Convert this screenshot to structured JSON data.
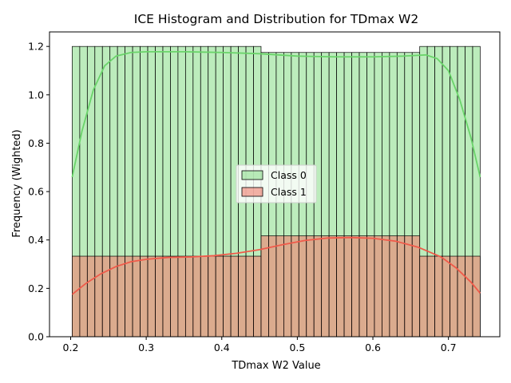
{
  "chart_data": {
    "type": "histogram",
    "title": "ICE Histogram and Distribution for TDmax W2",
    "xlabel": "TDmax W2 Value",
    "ylabel": "Frequency (Wighted)",
    "xlim": [
      0.172,
      0.768
    ],
    "ylim": [
      0,
      1.26
    ],
    "xticks": [
      0.2,
      0.3,
      0.4,
      0.5,
      0.6,
      0.7
    ],
    "yticks": [
      0.0,
      0.2,
      0.4,
      0.6,
      0.8,
      1.0,
      1.2
    ],
    "grid": false,
    "legend_position": "center",
    "bins": {
      "start": 0.202,
      "end": 0.742,
      "count": 54
    },
    "series": [
      {
        "name": "Class 0",
        "color": "#90e090",
        "kde_color": "#6ad46a",
        "steps": [
          {
            "x0": 0.202,
            "x1": 0.452,
            "value": 1.2
          },
          {
            "x0": 0.452,
            "x1": 0.666,
            "value": 1.175
          },
          {
            "x0": 0.666,
            "x1": 0.742,
            "value": 1.2
          }
        ],
        "kde": [
          [
            0.202,
            0.66
          ],
          [
            0.215,
            0.85
          ],
          [
            0.23,
            1.02
          ],
          [
            0.245,
            1.12
          ],
          [
            0.26,
            1.16
          ],
          [
            0.28,
            1.175
          ],
          [
            0.3,
            1.178
          ],
          [
            0.35,
            1.178
          ],
          [
            0.4,
            1.175
          ],
          [
            0.45,
            1.17
          ],
          [
            0.5,
            1.16
          ],
          [
            0.55,
            1.157
          ],
          [
            0.6,
            1.157
          ],
          [
            0.64,
            1.16
          ],
          [
            0.67,
            1.165
          ],
          [
            0.685,
            1.15
          ],
          [
            0.7,
            1.1
          ],
          [
            0.715,
            0.98
          ],
          [
            0.73,
            0.82
          ],
          [
            0.742,
            0.66
          ]
        ]
      },
      {
        "name": "Class 1",
        "color": "#f08070",
        "kde_color": "#f05a4a",
        "steps": [
          {
            "x0": 0.202,
            "x1": 0.452,
            "value": 0.333
          },
          {
            "x0": 0.452,
            "x1": 0.666,
            "value": 0.417
          },
          {
            "x0": 0.666,
            "x1": 0.742,
            "value": 0.333
          }
        ],
        "kde": [
          [
            0.202,
            0.175
          ],
          [
            0.22,
            0.22
          ],
          [
            0.24,
            0.26
          ],
          [
            0.26,
            0.29
          ],
          [
            0.28,
            0.31
          ],
          [
            0.3,
            0.32
          ],
          [
            0.33,
            0.328
          ],
          [
            0.36,
            0.33
          ],
          [
            0.39,
            0.335
          ],
          [
            0.42,
            0.345
          ],
          [
            0.45,
            0.36
          ],
          [
            0.48,
            0.38
          ],
          [
            0.51,
            0.398
          ],
          [
            0.54,
            0.408
          ],
          [
            0.57,
            0.41
          ],
          [
            0.6,
            0.407
          ],
          [
            0.63,
            0.395
          ],
          [
            0.66,
            0.37
          ],
          [
            0.69,
            0.33
          ],
          [
            0.71,
            0.285
          ],
          [
            0.73,
            0.225
          ],
          [
            0.742,
            0.18
          ]
        ]
      }
    ]
  }
}
